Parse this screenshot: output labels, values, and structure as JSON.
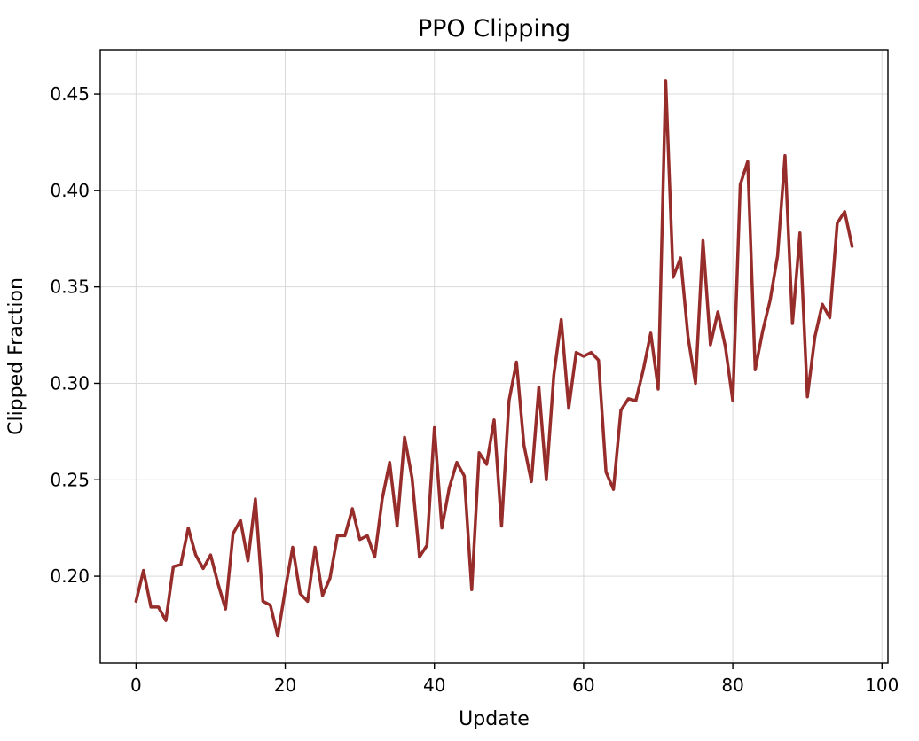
{
  "chart_data": {
    "type": "line",
    "title": "PPO Clipping",
    "xlabel": "Update",
    "ylabel": "Clipped Fraction",
    "xlim": [
      -4.8,
      100.8
    ],
    "ylim": [
      0.155,
      0.473
    ],
    "xticks": [
      0,
      20,
      40,
      60,
      80,
      100
    ],
    "yticks": [
      0.2,
      0.25,
      0.3,
      0.35,
      0.4,
      0.45
    ],
    "xtick_labels": [
      "0",
      "20",
      "40",
      "60",
      "80",
      "100"
    ],
    "ytick_labels": [
      "0.20",
      "0.25",
      "0.30",
      "0.35",
      "0.40",
      "0.45"
    ],
    "grid": true,
    "series": [
      {
        "color": "#962d2b",
        "x": [
          0,
          1,
          2,
          3,
          4,
          5,
          6,
          7,
          8,
          9,
          10,
          11,
          12,
          13,
          14,
          15,
          16,
          17,
          18,
          19,
          20,
          21,
          22,
          23,
          24,
          25,
          26,
          27,
          28,
          29,
          30,
          31,
          32,
          33,
          34,
          35,
          36,
          37,
          38,
          39,
          40,
          41,
          42,
          43,
          44,
          45,
          46,
          47,
          48,
          49,
          50,
          51,
          52,
          53,
          54,
          55,
          56,
          57,
          58,
          59,
          60,
          61,
          62,
          63,
          64,
          65,
          66,
          67,
          68,
          69,
          70,
          71,
          72,
          73,
          74,
          75,
          76,
          77,
          78,
          79,
          80,
          81,
          82,
          83,
          84,
          85,
          86,
          87,
          88,
          89,
          90,
          91,
          92,
          93,
          94,
          95,
          96
        ],
        "values": [
          0.187,
          0.203,
          0.184,
          0.184,
          0.177,
          0.205,
          0.206,
          0.225,
          0.211,
          0.204,
          0.211,
          0.196,
          0.183,
          0.222,
          0.229,
          0.208,
          0.24,
          0.187,
          0.185,
          0.169,
          0.193,
          0.215,
          0.191,
          0.187,
          0.215,
          0.19,
          0.199,
          0.221,
          0.221,
          0.235,
          0.219,
          0.221,
          0.21,
          0.24,
          0.259,
          0.226,
          0.272,
          0.251,
          0.21,
          0.216,
          0.277,
          0.225,
          0.246,
          0.259,
          0.252,
          0.193,
          0.264,
          0.258,
          0.281,
          0.226,
          0.291,
          0.311,
          0.268,
          0.249,
          0.298,
          0.25,
          0.304,
          0.333,
          0.287,
          0.316,
          0.314,
          0.316,
          0.312,
          0.254,
          0.245,
          0.286,
          0.292,
          0.291,
          0.307,
          0.326,
          0.297,
          0.457,
          0.355,
          0.365,
          0.324,
          0.3,
          0.374,
          0.32,
          0.337,
          0.319,
          0.291,
          0.403,
          0.415,
          0.307,
          0.327,
          0.343,
          0.366,
          0.418,
          0.331,
          0.378,
          0.293,
          0.324,
          0.341,
          0.334,
          0.383,
          0.389,
          0.371
        ]
      }
    ]
  }
}
